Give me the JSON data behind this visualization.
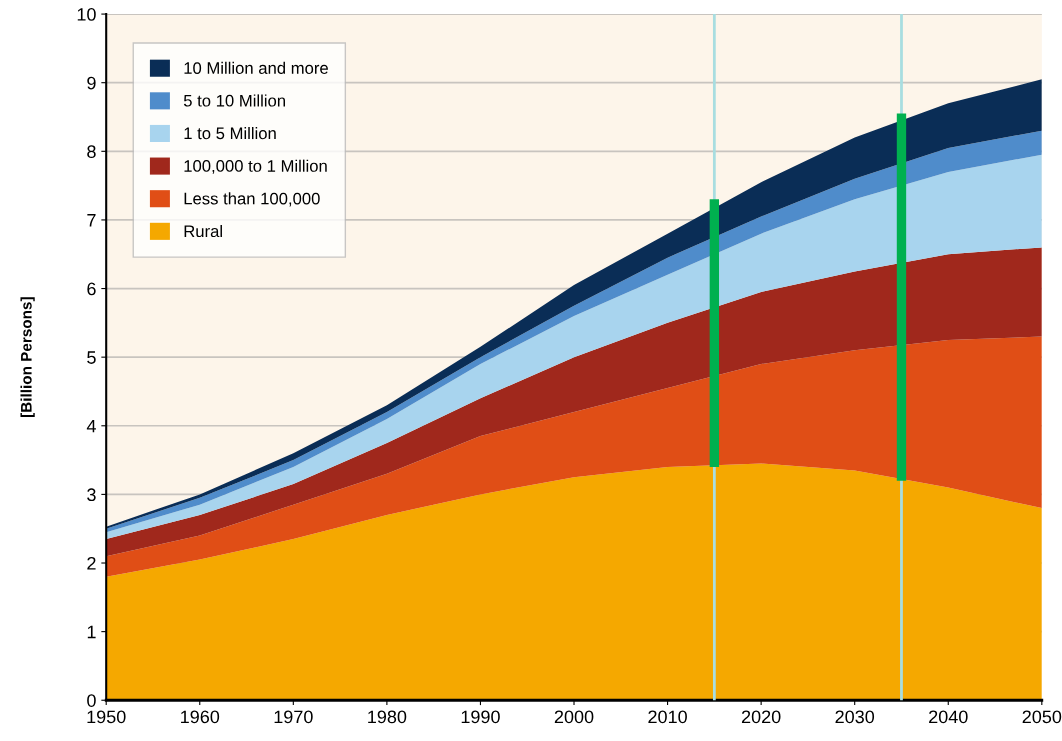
{
  "chart_data": {
    "type": "area",
    "stacked": true,
    "ylabel": "[Billion Persons]",
    "x": [
      1950,
      1960,
      1970,
      1980,
      1990,
      2000,
      2010,
      2020,
      2030,
      2040,
      2050
    ],
    "series": [
      {
        "name": "Rural",
        "color": "#f5a800",
        "values": [
          1.8,
          2.05,
          2.35,
          2.7,
          3.0,
          3.25,
          3.4,
          3.45,
          3.35,
          3.1,
          2.8
        ]
      },
      {
        "name": "Less than 100,000",
        "color": "#e04e16",
        "values": [
          0.3,
          0.35,
          0.5,
          0.6,
          0.85,
          0.95,
          1.15,
          1.45,
          1.75,
          2.15,
          2.5
        ]
      },
      {
        "name": "100,000 to 1 Million",
        "color": "#a0281c",
        "values": [
          0.25,
          0.3,
          0.3,
          0.45,
          0.55,
          0.8,
          0.95,
          1.05,
          1.15,
          1.25,
          1.3
        ]
      },
      {
        "name": "1 to 5 Million",
        "color": "#a8d4ee",
        "values": [
          0.1,
          0.15,
          0.25,
          0.35,
          0.5,
          0.6,
          0.7,
          0.85,
          1.05,
          1.2,
          1.35
        ]
      },
      {
        "name": "5 to 10 Million",
        "color": "#4f8ccb",
        "values": [
          0.05,
          0.1,
          0.1,
          0.1,
          0.1,
          0.15,
          0.25,
          0.25,
          0.3,
          0.35,
          0.35
        ]
      },
      {
        "name": "10 Million and more",
        "color": "#0a2d56",
        "values": [
          0.03,
          0.05,
          0.1,
          0.1,
          0.15,
          0.3,
          0.35,
          0.5,
          0.6,
          0.65,
          0.75
        ]
      },
      {
        "type": "bar",
        "color": "#00b04f",
        "x": [
          2015,
          2035
        ],
        "base": [
          3.4,
          3.2
        ],
        "values": [
          3.9,
          5.35
        ]
      }
    ],
    "xlim": [
      1950,
      2050
    ],
    "ylim": [
      0,
      10
    ],
    "xticks": [
      1950,
      1960,
      1970,
      1980,
      1990,
      2000,
      2010,
      2020,
      2030,
      2040,
      2050
    ],
    "yticks": [
      0,
      1,
      2,
      3,
      4,
      5,
      6,
      7,
      8,
      9,
      10
    ],
    "ref_lines": [
      {
        "axis": "x",
        "value": 2015,
        "color": "#a8dde0"
      },
      {
        "axis": "x",
        "value": 2035,
        "color": "#a8dde0"
      }
    ],
    "grid": "y",
    "legend": "top left"
  }
}
